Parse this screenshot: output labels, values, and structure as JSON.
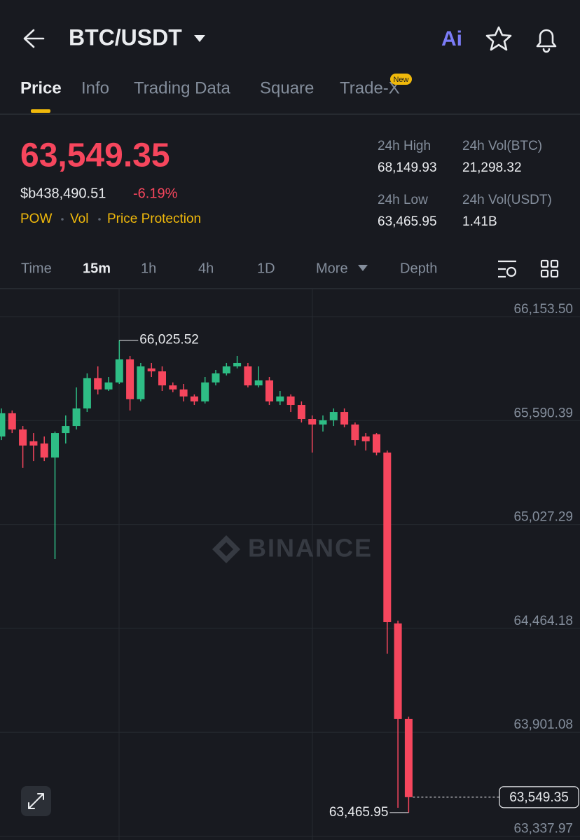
{
  "header": {
    "title": "BTC/USDT",
    "ai_label": "Ai"
  },
  "tabs": {
    "items": [
      "Price",
      "Info",
      "Trading Data",
      "Square",
      "Trade-X"
    ],
    "badge": "New"
  },
  "ticker": {
    "price": "63,549.35",
    "fiat_price": "$b438,490.51",
    "change": "-6.19%",
    "tags": [
      "POW",
      "Vol",
      "Price Protection"
    ],
    "stats": [
      {
        "label": "24h High",
        "value": "68,149.93"
      },
      {
        "label": "24h Vol(BTC)",
        "value": "21,298.32"
      },
      {
        "label": "24h Low",
        "value": "63,465.95"
      },
      {
        "label": "24h Vol(USDT)",
        "value": "1.41B"
      }
    ]
  },
  "intervals": {
    "items": [
      "Time",
      "15m",
      "1h",
      "4h",
      "1D",
      "More",
      "Depth"
    ]
  },
  "chart_data": {
    "type": "candlestick",
    "open": [
      65504,
      65630,
      65542,
      65478,
      65466,
      65390,
      65523,
      65561,
      65656,
      65820,
      65759,
      65797,
      65922,
      65706,
      65873,
      65857,
      65781,
      65759,
      65721,
      65694,
      65797,
      65846,
      65884,
      65884,
      65781,
      65808,
      65694,
      65721,
      65675,
      65599,
      65569,
      65592,
      65637,
      65569,
      65504,
      65516,
      65417,
      64491,
      63974
    ],
    "high": [
      65656,
      65645,
      65561,
      65523,
      65504,
      65531,
      65618,
      65770,
      65846,
      65884,
      65827,
      66025.52,
      65941,
      65903,
      65903,
      65884,
      65797,
      65789,
      65732,
      65827,
      65865,
      65903,
      65941,
      65903,
      65884,
      65827,
      65751,
      65732,
      65694,
      65618,
      65618,
      65656,
      65656,
      65580,
      65523,
      65523,
      65428,
      64506,
      63986
    ],
    "low": [
      65485,
      65523,
      65334,
      65371,
      65371,
      64840,
      65466,
      65542,
      65637,
      65732,
      65751,
      65789,
      65645,
      65694,
      65827,
      65751,
      65744,
      65694,
      65675,
      65683,
      65781,
      65835,
      65873,
      65770,
      65770,
      65675,
      65675,
      65637,
      65580,
      65417,
      65531,
      65561,
      65554,
      65455,
      65428,
      65402,
      64327,
      63492,
      63465.95
    ],
    "close": [
      65630,
      65542,
      65455,
      65455,
      65390,
      65523,
      65561,
      65656,
      65820,
      65759,
      65797,
      65922,
      65706,
      65884,
      65857,
      65781,
      65759,
      65721,
      65694,
      65797,
      65846,
      65884,
      65903,
      65781,
      65808,
      65694,
      65721,
      65675,
      65599,
      65569,
      65592,
      65637,
      65569,
      65485,
      65478,
      65417,
      64498,
      63974,
      63549.35
    ],
    "up_color": "#2ebd85",
    "down_color": "#f6465d",
    "ylim": [
      63317.2,
      66305.4
    ],
    "yticks": [
      {
        "value": 66153.5,
        "label": "66,153.50"
      },
      {
        "value": 65590.39,
        "label": "65,590.39"
      },
      {
        "value": 65027.29,
        "label": "65,027.29"
      },
      {
        "value": 64464.18,
        "label": "64,464.18"
      },
      {
        "value": 63901.08,
        "label": "63,901.08"
      },
      {
        "value": 63337.97,
        "label": "63,337.97"
      }
    ],
    "grid": true,
    "annotations": [
      {
        "label": "66,025.52",
        "value": 66025.52
      },
      {
        "label": "63,465.95",
        "value": 63465.95
      }
    ],
    "last_price": {
      "value": 63549.35,
      "label": "63,549.35"
    },
    "watermark": "BINANCE"
  }
}
